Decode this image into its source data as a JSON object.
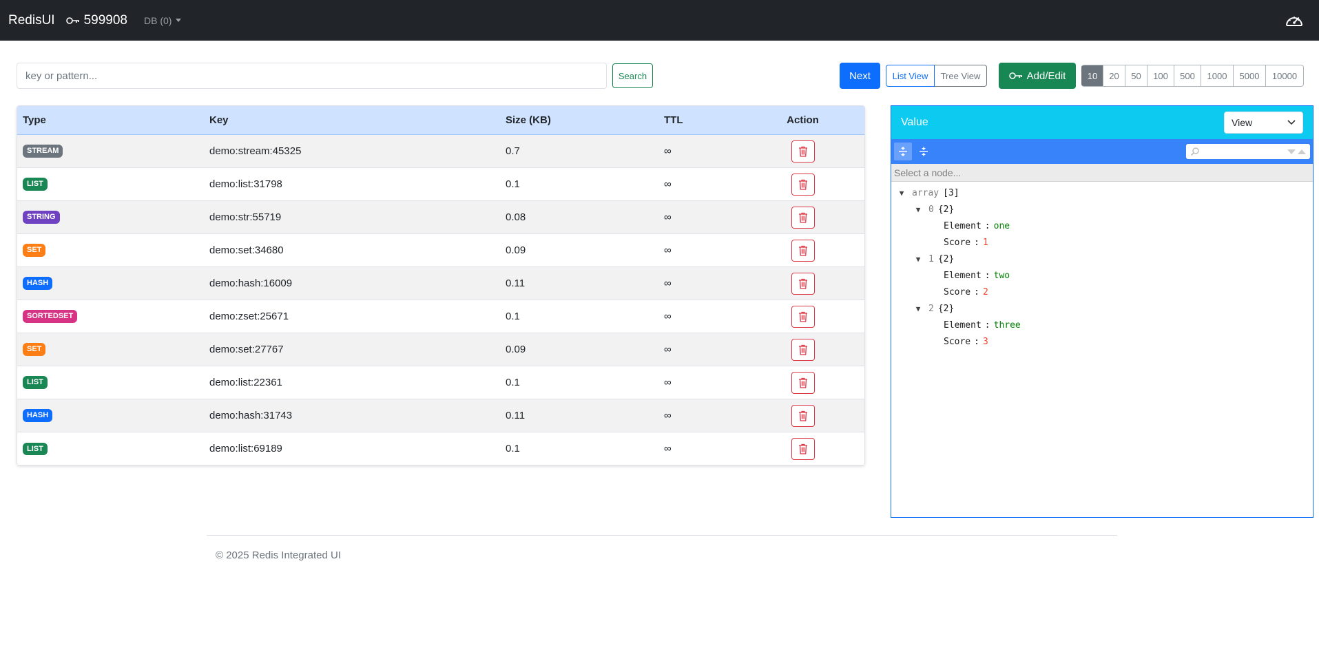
{
  "navbar": {
    "brand": "RedisUI",
    "key_count": "599908",
    "db_label": "DB (0)"
  },
  "search": {
    "placeholder": "key or pattern...",
    "button_label": "Search"
  },
  "toolbar": {
    "next_label": "Next",
    "list_view_label": "List View",
    "tree_view_label": "Tree View",
    "add_edit_label": "Add/Edit",
    "page_sizes": [
      "10",
      "20",
      "50",
      "100",
      "500",
      "1000",
      "5000",
      "10000"
    ],
    "selected_page_size": "10"
  },
  "table": {
    "headers": {
      "type": "Type",
      "key": "Key",
      "size": "Size (KB)",
      "ttl": "TTL",
      "action": "Action"
    },
    "rows": [
      {
        "type": "STREAM",
        "key": "demo:stream:45325",
        "size": "0.7",
        "ttl": "∞"
      },
      {
        "type": "LIST",
        "key": "demo:list:31798",
        "size": "0.1",
        "ttl": "∞"
      },
      {
        "type": "STRING",
        "key": "demo:str:55719",
        "size": "0.08",
        "ttl": "∞"
      },
      {
        "type": "SET",
        "key": "demo:set:34680",
        "size": "0.09",
        "ttl": "∞"
      },
      {
        "type": "HASH",
        "key": "demo:hash:16009",
        "size": "0.11",
        "ttl": "∞"
      },
      {
        "type": "SORTEDSET",
        "key": "demo:zset:25671",
        "size": "0.1",
        "ttl": "∞"
      },
      {
        "type": "SET",
        "key": "demo:set:27767",
        "size": "0.09",
        "ttl": "∞"
      },
      {
        "type": "LIST",
        "key": "demo:list:22361",
        "size": "0.1",
        "ttl": "∞"
      },
      {
        "type": "HASH",
        "key": "demo:hash:31743",
        "size": "0.11",
        "ttl": "∞"
      },
      {
        "type": "LIST",
        "key": "demo:list:69189",
        "size": "0.1",
        "ttl": "∞"
      }
    ]
  },
  "type_colors": {
    "STREAM": "#6c757d",
    "LIST": "#198754",
    "STRING": "#6f42c1",
    "SET": "#fd7e14",
    "HASH": "#0d6efd",
    "SORTEDSET": "#d63384"
  },
  "value_panel": {
    "title": "Value",
    "mode_select": "View",
    "node_path_placeholder": "Select a node...",
    "tree": [
      {
        "depth": 0,
        "toggle": "▼",
        "key": "array",
        "key_gray": true,
        "info": "[3]"
      },
      {
        "depth": 1,
        "toggle": "▼",
        "key": "0",
        "key_gray": true,
        "info": "{2}"
      },
      {
        "depth": 2,
        "key": "Element",
        "value": "one",
        "vtype": "str"
      },
      {
        "depth": 2,
        "key": "Score",
        "value": "1",
        "vtype": "num"
      },
      {
        "depth": 1,
        "toggle": "▼",
        "key": "1",
        "key_gray": true,
        "info": "{2}"
      },
      {
        "depth": 2,
        "key": "Element",
        "value": "two",
        "vtype": "str"
      },
      {
        "depth": 2,
        "key": "Score",
        "value": "2",
        "vtype": "num"
      },
      {
        "depth": 1,
        "toggle": "▼",
        "key": "2",
        "key_gray": true,
        "info": "{2}"
      },
      {
        "depth": 2,
        "key": "Element",
        "value": "three",
        "vtype": "str"
      },
      {
        "depth": 2,
        "key": "Score",
        "value": "3",
        "vtype": "num"
      }
    ]
  },
  "footer": {
    "text": "© 2025 Redis Integrated UI"
  }
}
